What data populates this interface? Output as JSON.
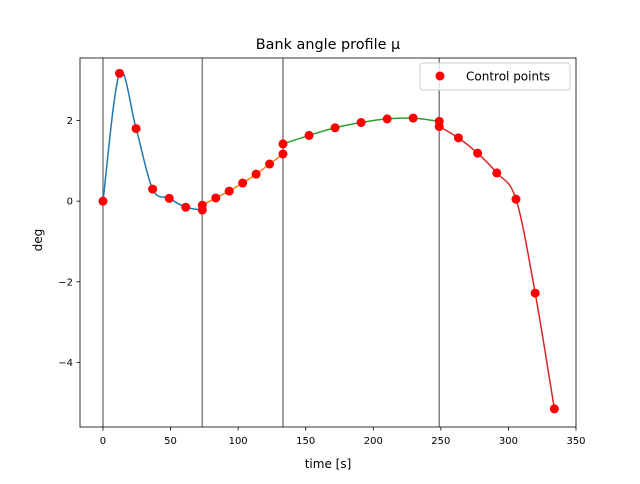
{
  "chart_data": {
    "type": "line",
    "title": "Bank angle profile μ",
    "xlabel": "time [s]",
    "ylabel": "deg",
    "xlim": [
      -17,
      350
    ],
    "ylim": [
      -5.6,
      3.55
    ],
    "xticks": [
      0,
      50,
      100,
      150,
      200,
      250,
      300,
      350
    ],
    "xtick_labels": [
      "0",
      "50",
      "100",
      "150",
      "200",
      "250",
      "300",
      "350"
    ],
    "yticks": [
      2,
      0,
      -2,
      -4
    ],
    "ytick_labels": [
      "2",
      "0",
      "−2",
      "−4"
    ],
    "grid": false,
    "legend": {
      "placement": "top-right",
      "entries": [
        "Control points"
      ]
    },
    "phase_boundaries": [
      0,
      73.5,
      133.2,
      248.8
    ],
    "series": [
      {
        "color": "#1f77b4",
        "x": [
          0,
          12.25,
          24.5,
          36.75,
          49,
          61.25,
          73.5
        ],
        "y": [
          0.0,
          3.17,
          1.8,
          0.3,
          0.07,
          -0.15,
          -0.22
        ]
      },
      {
        "color": "#ff7f0e",
        "x": [
          73.5,
          83.45,
          93.4,
          103.35,
          113.3,
          123.25,
          133.2
        ],
        "y": [
          -0.1,
          0.08,
          0.25,
          0.45,
          0.67,
          0.92,
          1.17
        ]
      },
      {
        "color": "#2ca02c",
        "x": [
          133.2,
          152.47,
          171.73,
          191.0,
          210.27,
          229.53,
          248.8
        ],
        "y": [
          1.42,
          1.63,
          1.82,
          1.95,
          2.04,
          2.06,
          1.98
        ]
      },
      {
        "color": "#d62728",
        "x": [
          248.8,
          263.0,
          277.2,
          291.4,
          305.6,
          319.8,
          334.0
        ],
        "y": [
          1.85,
          1.57,
          1.19,
          0.7,
          0.05,
          -2.28,
          -5.15
        ]
      }
    ],
    "control_points": {
      "name": "Control points",
      "color": "#ff0000",
      "x": [
        0,
        12.25,
        24.5,
        36.75,
        49,
        61.25,
        73.5,
        73.5,
        83.45,
        93.4,
        103.35,
        113.3,
        123.25,
        133.2,
        133.2,
        152.47,
        171.73,
        191.0,
        210.27,
        229.53,
        248.8,
        248.8,
        263.0,
        277.2,
        291.4,
        305.6,
        319.8,
        334.0
      ],
      "y": [
        0.0,
        3.17,
        1.8,
        0.3,
        0.07,
        -0.15,
        -0.22,
        -0.1,
        0.08,
        0.25,
        0.45,
        0.67,
        0.92,
        1.17,
        1.42,
        1.63,
        1.82,
        1.95,
        2.04,
        2.06,
        1.98,
        1.85,
        1.57,
        1.19,
        0.7,
        0.05,
        -2.28,
        -5.15
      ]
    }
  }
}
